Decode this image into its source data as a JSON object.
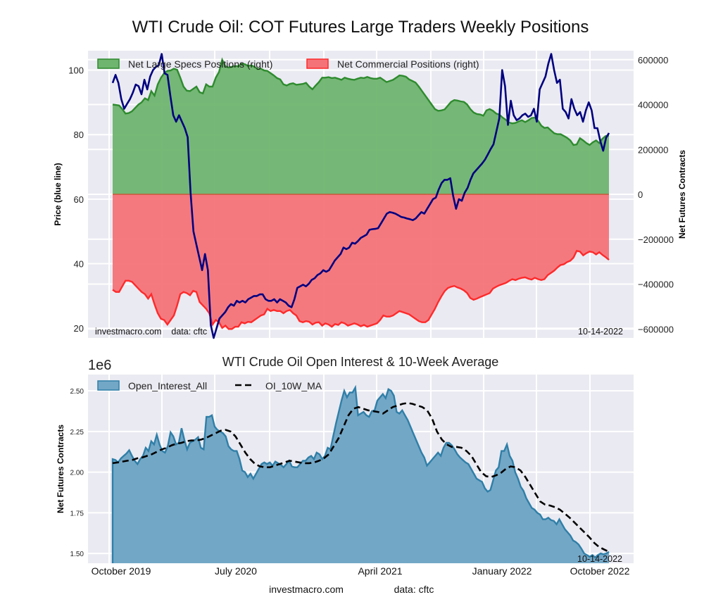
{
  "figure": {
    "title": "WTI Crude Oil: COT Futures Large Traders Weekly Positions",
    "footer_site": "investmacro.com",
    "footer_data": "data: cftc"
  },
  "chart_data": [
    {
      "type": "area",
      "title": "WTI Crude Oil: COT Futures Large Traders Weekly Positions",
      "ylabel_left": "Price (blue line)",
      "ylabel_right": "Net Futures Contracts",
      "ylim_left": [
        17,
        106
      ],
      "ylim_right": [
        -640000,
        640000
      ],
      "yticks_left": [
        20,
        40,
        60,
        80,
        100
      ],
      "yticks_right": [
        -600000,
        -400000,
        -200000,
        0,
        200000,
        400000,
        600000
      ],
      "ytick_labels_right": [
        "−600000",
        "−400000",
        "−200000",
        "0",
        "200000",
        "400000",
        "600000"
      ],
      "grid": true,
      "legend_position": "top",
      "annotation_left": "investmacro.com    data: cftc",
      "annotation_right": "10-14-2022",
      "series": [
        {
          "name": "Net Large Specs Positions (right)",
          "kind": "area",
          "color": "#2e8b2e",
          "fill": "#6fb46f",
          "axis": "right",
          "values": [
            400000,
            398000,
            396000,
            380000,
            360000,
            362000,
            370000,
            385000,
            400000,
            410000,
            428000,
            420000,
            460000,
            440000,
            490000,
            520000,
            540000,
            550000,
            552000,
            560000,
            555000,
            520000,
            480000,
            462000,
            460000,
            470000,
            480000,
            455000,
            450000,
            490000,
            480000,
            480000,
            520000,
            545000,
            600000,
            570000,
            565000,
            568000,
            572000,
            570000,
            582000,
            580000,
            572000,
            575000,
            568000,
            558000,
            560000,
            552000,
            550000,
            540000,
            530000,
            518000,
            512000,
            490000,
            485000,
            492000,
            495000,
            488000,
            490000,
            492000,
            497000,
            480000,
            468000,
            485000,
            500000,
            520000,
            520000,
            522000,
            518000,
            520000,
            515000,
            510000,
            520000,
            515000,
            512000,
            510000,
            515000,
            520000,
            518000,
            523000,
            518000,
            515000,
            515000,
            520000,
            510000,
            500000,
            505000,
            510000,
            520000,
            530000,
            528000,
            524000,
            512000,
            505000,
            498000,
            480000,
            460000,
            440000,
            420000,
            400000,
            380000,
            372000,
            374000,
            378000,
            395000,
            412000,
            420000,
            418000,
            414000,
            412000,
            400000,
            380000,
            365000,
            358000,
            356000,
            350000,
            374000,
            380000,
            372000,
            360000,
            355000,
            342000,
            332000,
            320000,
            316000,
            318000,
            325000,
            330000,
            322000,
            330000,
            340000,
            342000,
            328000,
            306000,
            296000,
            298000,
            285000,
            272000,
            268000,
            268000,
            260000,
            252000,
            240000,
            220000,
            222000,
            250000,
            240000,
            228000,
            220000,
            232000,
            240000,
            228000,
            248000,
            260000,
            262000
          ],
          "baseline": 0
        },
        {
          "name": "Net Commercial Positions (right)",
          "kind": "area",
          "color": "#ff2a2a",
          "fill": "#f47378",
          "axis": "right",
          "values": [
            -425000,
            -435000,
            -435000,
            -410000,
            -385000,
            -385000,
            -390000,
            -405000,
            -420000,
            -435000,
            -445000,
            -465000,
            -445000,
            -490000,
            -530000,
            -555000,
            -560000,
            -580000,
            -560000,
            -540000,
            -495000,
            -445000,
            -435000,
            -440000,
            -450000,
            -430000,
            -435000,
            -480000,
            -495000,
            -510000,
            -530000,
            -580000,
            -560000,
            -570000,
            -595000,
            -585000,
            -600000,
            -600000,
            -590000,
            -590000,
            -570000,
            -575000,
            -568000,
            -570000,
            -560000,
            -550000,
            -540000,
            -535000,
            -510000,
            -520000,
            -515000,
            -520000,
            -520000,
            -530000,
            -520000,
            -515000,
            -530000,
            -540000,
            -565000,
            -570000,
            -565000,
            -568000,
            -580000,
            -572000,
            -570000,
            -585000,
            -575000,
            -580000,
            -590000,
            -578000,
            -582000,
            -570000,
            -575000,
            -585000,
            -580000,
            -575000,
            -580000,
            -588000,
            -582000,
            -590000,
            -585000,
            -580000,
            -575000,
            -560000,
            -540000,
            -545000,
            -545000,
            -540000,
            -530000,
            -520000,
            -525000,
            -530000,
            -535000,
            -545000,
            -555000,
            -565000,
            -570000,
            -570000,
            -560000,
            -535000,
            -510000,
            -480000,
            -455000,
            -432000,
            -418000,
            -412000,
            -408000,
            -415000,
            -420000,
            -428000,
            -440000,
            -462000,
            -470000,
            -465000,
            -458000,
            -452000,
            -446000,
            -440000,
            -420000,
            -412000,
            -405000,
            -400000,
            -395000,
            -386000,
            -378000,
            -382000,
            -376000,
            -372000,
            -370000,
            -376000,
            -380000,
            -372000,
            -378000,
            -382000,
            -378000,
            -360000,
            -350000,
            -340000,
            -326000,
            -315000,
            -312000,
            -302000,
            -296000,
            -282000,
            -252000,
            -255000,
            -272000,
            -262000,
            -255000,
            -258000,
            -268000,
            -258000,
            -270000,
            -280000,
            -292000
          ],
          "baseline": 0
        },
        {
          "name": "Price",
          "kind": "line",
          "color": "#000080",
          "axis": "left",
          "values": [
            96,
            98.5,
            96,
            91,
            88,
            89.5,
            91,
            93,
            95.5,
            95,
            92.5,
            97,
            94,
            98,
            100,
            101,
            101.5,
            105,
            99,
            98.5,
            92,
            86,
            84,
            86,
            84,
            82,
            79.2,
            62,
            50,
            46,
            42,
            38,
            43,
            38,
            21,
            17,
            20,
            23,
            24,
            25,
            26.5,
            27.5,
            27,
            28.5,
            28,
            28.5,
            28,
            29,
            29.5,
            30,
            30,
            30.5,
            30.5,
            29,
            28.5,
            28.5,
            29,
            28,
            29,
            28.5,
            28,
            27,
            26.5,
            29,
            32.5,
            33,
            33.5,
            33,
            33.8,
            35,
            35.5,
            36.5,
            37,
            38,
            37.5,
            38,
            39.5,
            41,
            42,
            43,
            45,
            44.5,
            45,
            46.5,
            46.2,
            47,
            48,
            48.5,
            49,
            50.5,
            50.7,
            50.8,
            51,
            52.5,
            54,
            55.5,
            56,
            55.8,
            55.5,
            55,
            54.5,
            54.3,
            54,
            53.8,
            53.5,
            54,
            55,
            56,
            55.5,
            57,
            58.5,
            60,
            60.5,
            63,
            65,
            66,
            66,
            66.5,
            61,
            57,
            60,
            59.5,
            62,
            63.5,
            66,
            68,
            69,
            70,
            71,
            72.2,
            73.8,
            75.5,
            77,
            81,
            85,
            100,
            95,
            83,
            90.5,
            86,
            84.5,
            85,
            86,
            86.5,
            85.5,
            86,
            88,
            84,
            94,
            96,
            98,
            102,
            105,
            100,
            96,
            97,
            88,
            87,
            85,
            91,
            88,
            86,
            87,
            84,
            87.5,
            90,
            87.5,
            82,
            82,
            78,
            75,
            79,
            80.5
          ]
        }
      ]
    },
    {
      "type": "area",
      "title": "WTI Crude Oil Open Interest & 10-Week Average",
      "ylabel": "Net Futures Contracts",
      "y_scale_label": "1e6",
      "ylim": [
        1.44,
        2.6
      ],
      "yticks": [
        1.5,
        1.75,
        2.0,
        2.25,
        2.5
      ],
      "ytick_labels": [
        "1.50",
        "1.75",
        "2.00",
        "2.25",
        "2.50"
      ],
      "xtick_labels": [
        "October 2019",
        "July 2020",
        "April 2021",
        "January 2022",
        "October 2022"
      ],
      "grid": true,
      "legend_position": "top-left",
      "annotation_right": "10-14-2022",
      "series": [
        {
          "name": "Open_Interest_All",
          "kind": "area",
          "color": "#2f7fa8",
          "fill": "#73a7c6",
          "unit": "millions",
          "values": [
            2.08,
            2.075,
            2.06,
            2.085,
            2.1,
            2.115,
            2.135,
            2.1,
            2.07,
            2.05,
            2.08,
            2.1,
            2.15,
            2.13,
            2.19,
            2.17,
            2.23,
            2.17,
            2.13,
            2.12,
            2.16,
            2.245,
            2.22,
            2.17,
            2.18,
            2.27,
            2.2,
            2.14,
            2.18,
            2.19,
            2.2,
            2.215,
            2.15,
            2.14,
            2.34,
            2.34,
            2.35,
            2.28,
            2.26,
            2.25,
            2.24,
            2.22,
            2.16,
            2.14,
            2.13,
            2.13,
            2.08,
            2.01,
            2.0,
            1.97,
            1.99,
            1.96,
            1.99,
            2.02,
            2.05,
            2.06,
            2.05,
            2.06,
            2.04,
            2.065,
            2.055,
            2.045,
            2.03,
            2.05,
            2.07,
            2.035,
            2.03,
            2.03,
            2.05,
            2.07,
            2.07,
            2.09,
            2.1,
            2.08,
            2.12,
            2.11,
            2.08,
            2.1,
            2.15,
            2.14,
            2.22,
            2.3,
            2.37,
            2.44,
            2.5,
            2.46,
            2.49,
            2.49,
            2.52,
            2.35,
            2.36,
            2.37,
            2.35,
            2.34,
            2.375,
            2.38,
            2.44,
            2.46,
            2.48,
            2.455,
            2.51,
            2.5,
            2.47,
            2.37,
            2.36,
            2.38,
            2.35,
            2.32,
            2.28,
            2.24,
            2.2,
            2.16,
            2.12,
            2.09,
            2.04,
            2.06,
            2.08,
            2.1,
            2.12,
            2.1,
            2.15,
            2.18,
            2.18,
            2.165,
            2.14,
            2.11,
            2.09,
            2.075,
            2.06,
            2.05,
            2.02,
            1.99,
            1.96,
            1.95,
            1.94,
            1.9,
            1.88,
            1.89,
            1.95,
            2.01,
            2.03,
            2.13,
            2.13,
            2.17,
            2.1,
            2.07,
            2.0,
            1.96,
            1.91,
            1.885,
            1.84,
            1.81,
            1.78,
            1.77,
            1.75,
            1.74,
            1.71,
            1.71,
            1.72,
            1.705,
            1.7,
            1.68,
            1.71,
            1.68,
            1.65,
            1.63,
            1.61,
            1.58,
            1.57,
            1.555,
            1.53,
            1.5,
            1.49,
            1.48,
            1.49,
            1.475,
            1.49,
            1.5,
            1.495,
            1.5,
            1.51
          ]
        },
        {
          "name": "OI_10W_MA",
          "kind": "line",
          "style": "dashed",
          "color": "#000000",
          "unit": "millions",
          "values": [
            2.055,
            2.06,
            2.065,
            2.07,
            2.075,
            2.085,
            2.09,
            2.1,
            2.11,
            2.125,
            2.14,
            2.15,
            2.165,
            2.175,
            2.18,
            2.19,
            2.195,
            2.195,
            2.2,
            2.21,
            2.225,
            2.24,
            2.255,
            2.26,
            2.25,
            2.22,
            2.17,
            2.12,
            2.08,
            2.05,
            2.035,
            2.03,
            2.03,
            2.04,
            2.05,
            2.06,
            2.07,
            2.065,
            2.06,
            2.055,
            2.055,
            2.06,
            2.07,
            2.085,
            2.11,
            2.16,
            2.21,
            2.28,
            2.35,
            2.39,
            2.4,
            2.39,
            2.38,
            2.375,
            2.37,
            2.36,
            2.38,
            2.4,
            2.41,
            2.42,
            2.425,
            2.42,
            2.41,
            2.4,
            2.38,
            2.33,
            2.25,
            2.2,
            2.17,
            2.155,
            2.155,
            2.15,
            2.13,
            2.1,
            2.05,
            2.0,
            1.975,
            1.97,
            1.98,
            1.995,
            2.02,
            2.035,
            2.03,
            2.01,
            1.97,
            1.92,
            1.87,
            1.82,
            1.8,
            1.795,
            1.785,
            1.77,
            1.745,
            1.72,
            1.69,
            1.66,
            1.63,
            1.6,
            1.565,
            1.54,
            1.525,
            1.51
          ]
        }
      ]
    }
  ]
}
